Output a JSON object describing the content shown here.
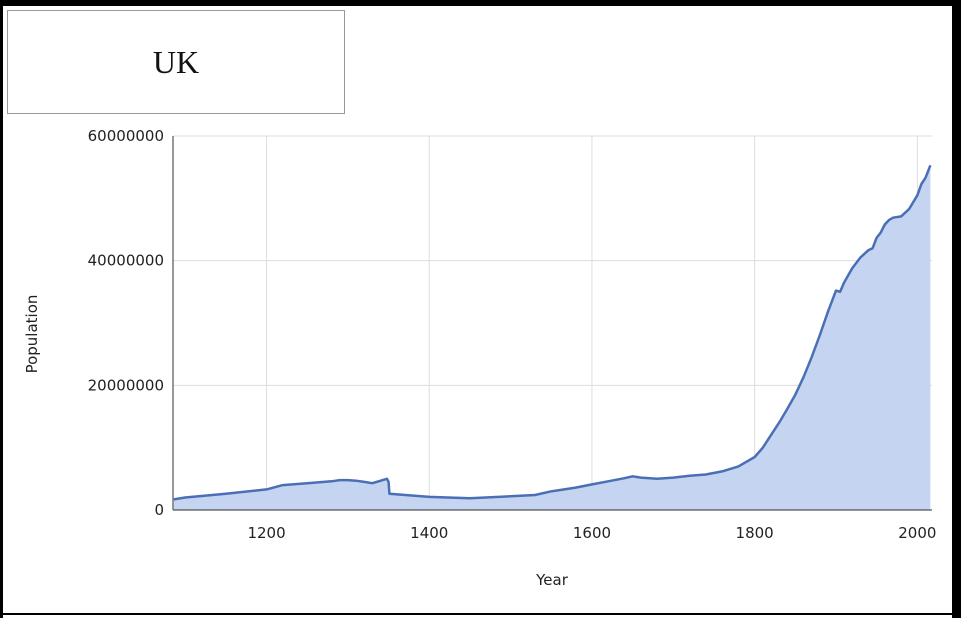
{
  "title_box": {
    "text": "UK"
  },
  "chart_data": {
    "type": "area",
    "title": "UK",
    "xlabel": "Year",
    "ylabel": "Population",
    "xlim": [
      1085,
      2018
    ],
    "ylim": [
      0,
      60000000
    ],
    "x_ticks": [
      1200,
      1400,
      1600,
      1800,
      2000
    ],
    "y_ticks": [
      0,
      20000000,
      40000000,
      60000000
    ],
    "x_tick_labels": [
      "1200",
      "1400",
      "1600",
      "1800",
      "2000"
    ],
    "y_tick_labels": [
      "0",
      "20000000",
      "40000000",
      "60000000"
    ],
    "grid": true,
    "legend": "none",
    "colors": {
      "line": "#4a6fb5",
      "fill": "#c5d5f1",
      "grid": "#dddddd",
      "axis": "#555555"
    },
    "series": [
      {
        "x": [
          1086,
          1100,
          1150,
          1200,
          1220,
          1250,
          1280,
          1290,
          1300,
          1310,
          1320,
          1330,
          1348,
          1350,
          1351,
          1400,
          1450,
          1500,
          1530,
          1550,
          1560,
          1580,
          1600,
          1620,
          1640,
          1650,
          1660,
          1680,
          1700,
          1720,
          1730,
          1740,
          1760,
          1780,
          1800,
          1810,
          1820,
          1830,
          1840,
          1850,
          1860,
          1870,
          1880,
          1890,
          1900,
          1905,
          1910,
          1920,
          1930,
          1940,
          1945,
          1950,
          1955,
          1960,
          1965,
          1970,
          1980,
          1990,
          2000,
          2005,
          2010,
          2016
        ],
        "y": [
          1700000,
          2000000,
          2600000,
          3300000,
          4000000,
          4300000,
          4600000,
          4800000,
          4800000,
          4700000,
          4500000,
          4300000,
          5000000,
          4500000,
          2600000,
          2100000,
          1900000,
          2200000,
          2400000,
          3000000,
          3200000,
          3600000,
          4100000,
          4600000,
          5100000,
          5400000,
          5200000,
          5000000,
          5200000,
          5500000,
          5600000,
          5700000,
          6200000,
          7000000,
          8500000,
          10000000,
          12000000,
          14000000,
          16200000,
          18500000,
          21300000,
          24500000,
          28000000,
          31800000,
          35200000,
          35000000,
          36500000,
          38800000,
          40500000,
          41700000,
          42000000,
          43700000,
          44500000,
          45800000,
          46500000,
          46900000,
          47100000,
          48300000,
          50500000,
          52300000,
          53300000,
          55300000
        ]
      }
    ]
  }
}
